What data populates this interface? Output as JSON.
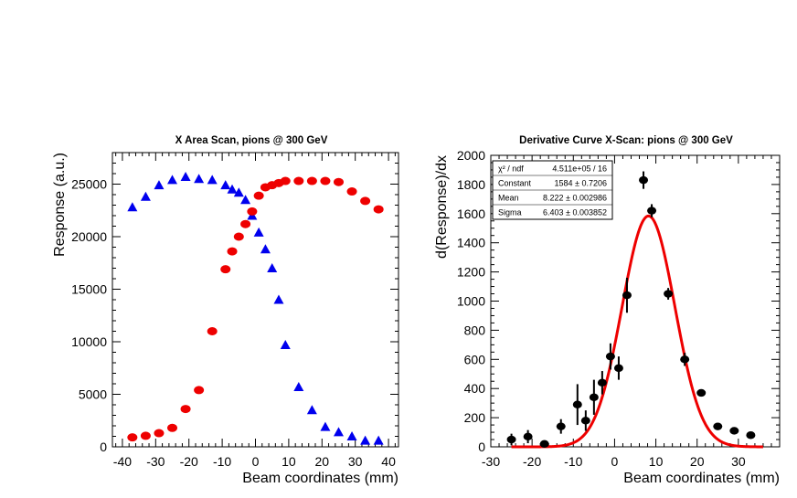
{
  "chart_data": [
    {
      "type": "scatter",
      "title": "X Area Scan, pions @ 300 GeV",
      "xlabel": "Beam coordinates (mm)",
      "ylabel": "Response (a.u.)",
      "xlim": [
        -43,
        43
      ],
      "ylim": [
        0,
        28000
      ],
      "xticks": [
        -40,
        -30,
        -20,
        -10,
        0,
        10,
        20,
        30,
        40
      ],
      "xtick_labels": [
        "-40",
        "-30",
        "-20",
        "-10",
        "0",
        "10",
        "20",
        "30",
        "40"
      ],
      "yticks": [
        0,
        5000,
        10000,
        15000,
        20000,
        25000
      ],
      "ytick_labels": [
        "0",
        "5000",
        "10000",
        "15000",
        "20000",
        "25000"
      ],
      "series": [
        {
          "name": "blue triangles",
          "color": "#0000ee",
          "marker": "triangle",
          "x": [
            -37,
            -33,
            -29,
            -25,
            -21,
            -17,
            -13,
            -9,
            -7,
            -5,
            -3,
            -1,
            1,
            3,
            5,
            7,
            9,
            13,
            17,
            21,
            25,
            29,
            33,
            37
          ],
          "y": [
            22800,
            23800,
            24900,
            25400,
            25700,
            25500,
            25400,
            24900,
            24500,
            24200,
            23500,
            22000,
            20400,
            18800,
            17000,
            14000,
            9700,
            5700,
            3500,
            1900,
            1400,
            1000,
            600,
            600
          ]
        },
        {
          "name": "red circles",
          "color": "#ee0000",
          "marker": "circle",
          "x": [
            -37,
            -33,
            -29,
            -25,
            -21,
            -17,
            -13,
            -9,
            -7,
            -5,
            -3,
            -1,
            1,
            3,
            5,
            7,
            9,
            13,
            17,
            21,
            25,
            29,
            33,
            37
          ],
          "y": [
            900,
            1050,
            1300,
            1800,
            3600,
            5400,
            11000,
            16900,
            18600,
            20000,
            21200,
            22400,
            23900,
            24700,
            24900,
            25100,
            25300,
            25300,
            25300,
            25300,
            25200,
            24300,
            23400,
            22600
          ]
        }
      ]
    },
    {
      "type": "scatter",
      "title": "Derivative Curve X-Scan: pions @ 300 GeV",
      "xlabel": "Beam coordinates (mm)",
      "ylabel": "d(Response)/dx",
      "xlim": [
        -30,
        40
      ],
      "ylim": [
        0,
        2000
      ],
      "xticks": [
        -30,
        -20,
        -10,
        0,
        10,
        20,
        30
      ],
      "xtick_labels": [
        "-30",
        "-20",
        "-10",
        "0",
        "10",
        "20",
        "30"
      ],
      "yticks": [
        0,
        200,
        400,
        600,
        800,
        1000,
        1200,
        1400,
        1600,
        1800,
        2000
      ],
      "ytick_labels": [
        "0",
        "200",
        "400",
        "600",
        "800",
        "1000",
        "1200",
        "1400",
        "1600",
        "1800",
        "2000"
      ],
      "points": {
        "name": "derivative",
        "color": "#000000",
        "x": [
          -25,
          -21,
          -17,
          -13,
          -9,
          -7,
          -5,
          -3,
          -1,
          1,
          3,
          7,
          9,
          13,
          17,
          21,
          25,
          29,
          33
        ],
        "y": [
          50,
          70,
          20,
          140,
          290,
          180,
          340,
          440,
          620,
          540,
          1040,
          1830,
          1620,
          1050,
          600,
          370,
          140,
          110,
          80
        ],
        "err": [
          40,
          45,
          25,
          50,
          140,
          70,
          120,
          80,
          90,
          80,
          120,
          60,
          45,
          40,
          45,
          25,
          15,
          15,
          15
        ]
      },
      "fit": {
        "name": "Gaussian fit",
        "color": "#ee0000",
        "constant": 1584,
        "mean": 8.222,
        "sigma": 6.403
      },
      "stats_box": {
        "rows": [
          {
            "label": "χ² / ndf",
            "value": "4.511e+05 / 16"
          },
          {
            "label": "Constant",
            "value": "1584 ± 0.7206"
          },
          {
            "label": "Mean",
            "value": "8.222 ± 0.002986"
          },
          {
            "label": "Sigma",
            "value": "6.403 ± 0.003852"
          }
        ]
      }
    }
  ]
}
